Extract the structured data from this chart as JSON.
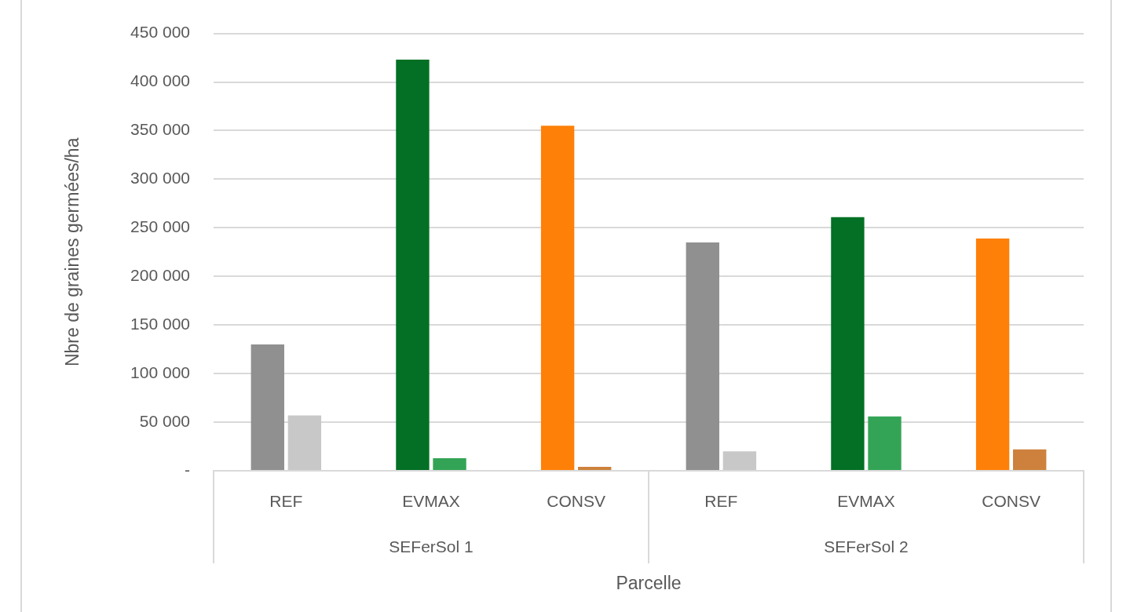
{
  "chart_data": {
    "type": "bar",
    "ylabel": "Nbre de graines germées/ha",
    "xlabel": "Parcelle",
    "categories": [
      "REF",
      "EVMAX",
      "CONSV",
      "REF",
      "EVMAX",
      "CONSV"
    ],
    "annotations": [
      "SEFerSol 1",
      "SEFerSol 2"
    ],
    "series": [
      {
        "colors": [
          "#909090",
          "#037025",
          "#fe8008",
          "#909090",
          "#037025",
          "#fe8008"
        ],
        "values": [
          130000,
          423000,
          355000,
          235000,
          261000,
          239000
        ]
      },
      {
        "colors": [
          "#c8c8c8",
          "#33a456",
          "#cd813c",
          "#c8c8c8",
          "#33a456",
          "#cd813c"
        ],
        "values": [
          57000,
          13000,
          4000,
          20000,
          56000,
          22000
        ]
      }
    ],
    "ylim": [
      0,
      450000
    ],
    "yticks": [
      {
        "value": 0,
        "label": "-"
      },
      {
        "value": 50000,
        "label": "50 000"
      },
      {
        "value": 100000,
        "label": "100 000"
      },
      {
        "value": 150000,
        "label": "150 000"
      },
      {
        "value": 200000,
        "label": "200 000"
      },
      {
        "value": 250000,
        "label": "250 000"
      },
      {
        "value": 300000,
        "label": "300 000"
      },
      {
        "value": 350000,
        "label": "350 000"
      },
      {
        "value": 400000,
        "label": "400 000"
      },
      {
        "value": 450000,
        "label": "450 000"
      }
    ],
    "grid": "y",
    "legend": false
  }
}
